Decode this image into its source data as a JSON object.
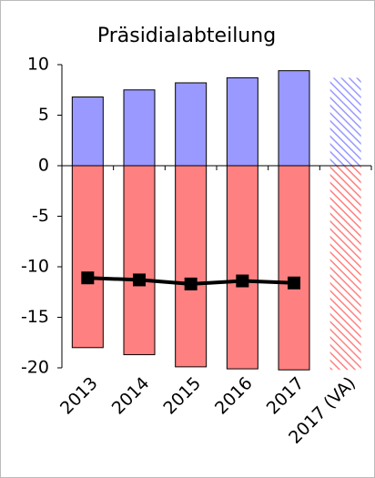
{
  "chart_data": {
    "type": "bar-line",
    "title": "Präsidialabteilung",
    "categories": [
      "2013",
      "2014",
      "2015",
      "2016",
      "2017",
      "2017 (VA)"
    ],
    "series": [
      {
        "type": "bar",
        "color": "#9999ff",
        "values": [
          6.8,
          7.5,
          8.2,
          8.7,
          9.4,
          8.7
        ]
      },
      {
        "type": "bar",
        "color": "#ff8080",
        "values": [
          -18.0,
          -18.7,
          -19.9,
          -20.1,
          -20.2,
          -20.2
        ]
      },
      {
        "type": "line",
        "color": "#000000",
        "values": [
          -11.1,
          -11.3,
          -11.7,
          -11.4,
          -11.6,
          null
        ]
      }
    ],
    "hatched": [
      false,
      false,
      false,
      false,
      false,
      true
    ],
    "ylim": [
      -20,
      10
    ],
    "yticks": [
      -20,
      -15,
      -10,
      -5,
      0,
      5,
      10
    ],
    "grid": false
  }
}
